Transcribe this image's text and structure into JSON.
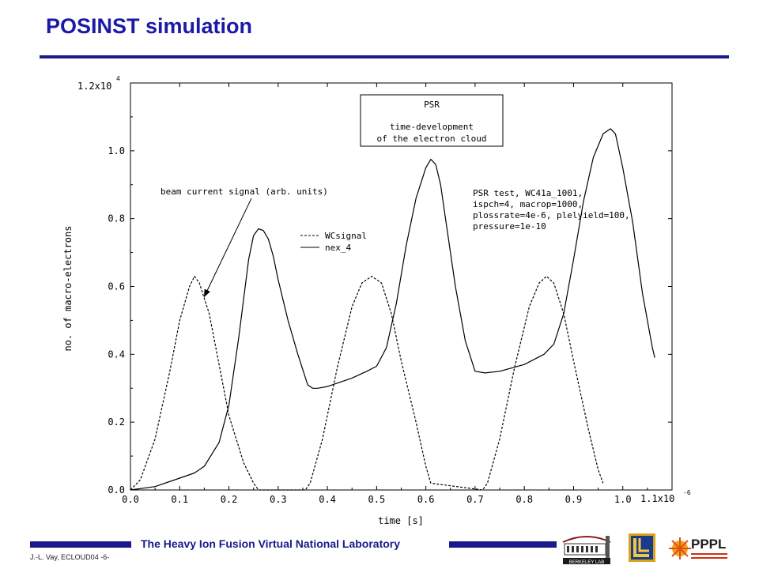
{
  "slide": {
    "title": "POSINST simulation",
    "footer_lab": "The Heavy Ion Fusion Virtual National Laboratory",
    "footer_author": "J.-L. Vay,  ECLOUD04   -6-",
    "logos": [
      {
        "name": "berkeley-lab-logo",
        "text": "BERKELEY LAB"
      },
      {
        "name": "llnl-logo",
        "text": ""
      },
      {
        "name": "pppl-logo",
        "text": "PPPL"
      }
    ]
  },
  "chart_data": {
    "type": "line",
    "title": "",
    "xlabel": "time [s]",
    "ylabel": "no. of macro-electrons",
    "xlim": [
      0.0,
      1.1
    ],
    "ylim": [
      0.0,
      1.2
    ],
    "x_ticks": [
      "0.0",
      "0.1",
      "0.2",
      "0.3",
      "0.4",
      "0.5",
      "0.6",
      "0.7",
      "0.8",
      "0.9",
      "1.0"
    ],
    "x_tick_values": [
      0.0,
      0.1,
      0.2,
      0.3,
      0.4,
      0.5,
      0.6,
      0.7,
      0.8,
      0.9,
      1.0
    ],
    "x_max_label": "1.1x10",
    "x_exponent": "-6",
    "y_ticks": [
      "0.0",
      "0.2",
      "0.4",
      "0.6",
      "0.8",
      "1.0"
    ],
    "y_tick_values": [
      0.0,
      0.2,
      0.4,
      0.6,
      0.8,
      1.0
    ],
    "y_max_label": "1.2x10",
    "y_exponent": "4",
    "grid": false,
    "legend_position": "upper-middle",
    "series": [
      {
        "name": "WCsignal",
        "style": "dashed",
        "x": [
          0.0,
          0.02,
          0.05,
          0.08,
          0.1,
          0.12,
          0.13,
          0.14,
          0.16,
          0.18,
          0.2,
          0.23,
          0.25,
          0.26,
          0.355,
          0.365,
          0.39,
          0.42,
          0.45,
          0.47,
          0.49,
          0.51,
          0.53,
          0.55,
          0.58,
          0.6,
          0.61,
          0.715,
          0.725,
          0.75,
          0.78,
          0.81,
          0.83,
          0.845,
          0.86,
          0.88,
          0.9,
          0.93,
          0.95,
          0.96
        ],
        "y": [
          0.0,
          0.03,
          0.15,
          0.35,
          0.5,
          0.6,
          0.63,
          0.61,
          0.52,
          0.37,
          0.22,
          0.08,
          0.02,
          0.0,
          0.0,
          0.02,
          0.15,
          0.36,
          0.54,
          0.61,
          0.63,
          0.61,
          0.52,
          0.38,
          0.2,
          0.07,
          0.02,
          0.0,
          0.02,
          0.15,
          0.36,
          0.54,
          0.61,
          0.63,
          0.61,
          0.52,
          0.38,
          0.18,
          0.06,
          0.02
        ]
      },
      {
        "name": "nex_4",
        "style": "solid",
        "x": [
          0.0,
          0.05,
          0.1,
          0.13,
          0.15,
          0.18,
          0.2,
          0.22,
          0.24,
          0.25,
          0.26,
          0.27,
          0.28,
          0.29,
          0.3,
          0.32,
          0.34,
          0.36,
          0.37,
          0.38,
          0.4,
          0.45,
          0.48,
          0.5,
          0.52,
          0.54,
          0.56,
          0.58,
          0.6,
          0.61,
          0.62,
          0.63,
          0.64,
          0.66,
          0.68,
          0.7,
          0.72,
          0.75,
          0.8,
          0.84,
          0.86,
          0.88,
          0.9,
          0.92,
          0.94,
          0.96,
          0.975,
          0.985,
          1.0,
          1.02,
          1.04,
          1.06,
          1.065
        ],
        "y": [
          0.0,
          0.01,
          0.035,
          0.05,
          0.07,
          0.14,
          0.25,
          0.45,
          0.68,
          0.75,
          0.77,
          0.765,
          0.74,
          0.69,
          0.62,
          0.5,
          0.4,
          0.31,
          0.3,
          0.3,
          0.305,
          0.33,
          0.35,
          0.365,
          0.42,
          0.55,
          0.72,
          0.86,
          0.95,
          0.975,
          0.96,
          0.9,
          0.8,
          0.6,
          0.44,
          0.35,
          0.345,
          0.35,
          0.37,
          0.4,
          0.43,
          0.52,
          0.68,
          0.85,
          0.98,
          1.05,
          1.065,
          1.05,
          0.95,
          0.79,
          0.58,
          0.42,
          0.39
        ]
      }
    ],
    "annotations": {
      "psr_box": [
        "PSR",
        "time-development",
        "of the electron cloud"
      ],
      "params": [
        "PSR test, WC41a_1001,",
        "ispch=4, macrop=1000,",
        "plossrate=4e-6, plelyield=100,",
        "pressure=1e-10"
      ],
      "arrow_label": "beam current signal (arb. units)",
      "arrow_target": {
        "x": 0.15,
        "y": 0.57
      }
    }
  }
}
